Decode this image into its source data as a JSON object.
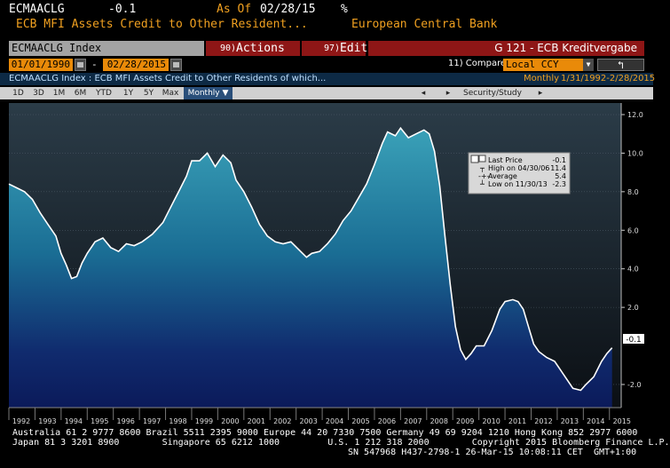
{
  "header": {
    "ticker": "ECMAACLG",
    "last_value": "-0.1",
    "as_of_label": "As Of",
    "as_of_date": "02/28/15",
    "pct_icon": "%",
    "description": "ECB MFI Assets Credit to Other Resident...",
    "source": "European Central Bank"
  },
  "toolbar": {
    "index_field": "ECMAACLG Index",
    "actions_num": "90)",
    "actions_label": "Actions",
    "edit_num": "97)",
    "edit_label": "Edit",
    "graph_title": "G 121 - ECB Kreditvergabe"
  },
  "dates": {
    "start": "01/01/1990",
    "dash": "-",
    "end": "02/28/2015",
    "compare_label": "11) Compare",
    "compare_value": "Local CCY",
    "period": "Monthly",
    "range": "1/31/1992-2/28/2015"
  },
  "series_title": "ECMAACLG Index : ECB MFI Assets Credit to Other Residents of which...",
  "security_study": "Security/Study",
  "zoom_buttons": [
    "1D",
    "3D",
    "1M",
    "6M",
    "YTD",
    "1Y",
    "5Y",
    "Max"
  ],
  "frequency": "Monthly",
  "legend": {
    "last_price_label": "Last Price",
    "last_price_value": "-0.1",
    "high_label": "High on 04/30/06",
    "high_value": "11.4",
    "average_label": "Average",
    "average_value": "5.4",
    "low_label": "Low on 11/30/13",
    "low_value": "-2.3"
  },
  "chart_data": {
    "type": "area",
    "y_ticks": [
      "12.0",
      "10.0",
      "8.0",
      "6.0",
      "4.0",
      "2.0",
      "-2.0"
    ],
    "x_ticks": [
      "1992",
      "1993",
      "1994",
      "1995",
      "1996",
      "1997",
      "1998",
      "1999",
      "2000",
      "2001",
      "2002",
      "2003",
      "2004",
      "2005",
      "2006",
      "2007",
      "2008",
      "2009",
      "2010",
      "2011",
      "2012",
      "2013",
      "2014",
      "2015"
    ],
    "ylim": [
      -3.2,
      12.6
    ],
    "last_value_label": "-0.1",
    "points": [
      [
        1992.0,
        8.4
      ],
      [
        1992.3,
        8.2
      ],
      [
        1992.6,
        8.0
      ],
      [
        1992.9,
        7.6
      ],
      [
        1993.2,
        6.9
      ],
      [
        1993.5,
        6.3
      ],
      [
        1993.8,
        5.7
      ],
      [
        1994.0,
        4.8
      ],
      [
        1994.2,
        4.2
      ],
      [
        1994.4,
        3.5
      ],
      [
        1994.6,
        3.6
      ],
      [
        1994.8,
        4.3
      ],
      [
        1995.0,
        4.8
      ],
      [
        1995.3,
        5.4
      ],
      [
        1995.6,
        5.6
      ],
      [
        1995.9,
        5.1
      ],
      [
        1996.2,
        4.9
      ],
      [
        1996.5,
        5.3
      ],
      [
        1996.8,
        5.2
      ],
      [
        1997.1,
        5.4
      ],
      [
        1997.5,
        5.8
      ],
      [
        1997.9,
        6.4
      ],
      [
        1998.2,
        7.2
      ],
      [
        1998.5,
        8.0
      ],
      [
        1998.8,
        8.8
      ],
      [
        1999.0,
        9.6
      ],
      [
        1999.3,
        9.6
      ],
      [
        1999.6,
        10.0
      ],
      [
        1999.9,
        9.3
      ],
      [
        2000.2,
        9.9
      ],
      [
        2000.5,
        9.5
      ],
      [
        2000.7,
        8.6
      ],
      [
        2001.0,
        8.0
      ],
      [
        2001.3,
        7.2
      ],
      [
        2001.6,
        6.3
      ],
      [
        2001.9,
        5.7
      ],
      [
        2002.2,
        5.4
      ],
      [
        2002.5,
        5.3
      ],
      [
        2002.8,
        5.4
      ],
      [
        2003.1,
        5.0
      ],
      [
        2003.4,
        4.6
      ],
      [
        2003.6,
        4.8
      ],
      [
        2003.9,
        4.9
      ],
      [
        2004.2,
        5.3
      ],
      [
        2004.5,
        5.8
      ],
      [
        2004.8,
        6.5
      ],
      [
        2005.1,
        7.0
      ],
      [
        2005.4,
        7.7
      ],
      [
        2005.7,
        8.4
      ],
      [
        2006.0,
        9.4
      ],
      [
        2006.3,
        10.5
      ],
      [
        2006.5,
        11.1
      ],
      [
        2006.8,
        10.9
      ],
      [
        2007.0,
        11.3
      ],
      [
        2007.3,
        10.8
      ],
      [
        2007.6,
        11.0
      ],
      [
        2007.9,
        11.2
      ],
      [
        2008.1,
        11.0
      ],
      [
        2008.3,
        10.1
      ],
      [
        2008.5,
        8.3
      ],
      [
        2008.7,
        5.7
      ],
      [
        2008.9,
        3.2
      ],
      [
        2009.1,
        1.0
      ],
      [
        2009.3,
        -0.2
      ],
      [
        2009.5,
        -0.7
      ],
      [
        2009.7,
        -0.4
      ],
      [
        2009.9,
        0.0
      ],
      [
        2010.2,
        0.0
      ],
      [
        2010.5,
        0.8
      ],
      [
        2010.8,
        1.9
      ],
      [
        2011.0,
        2.3
      ],
      [
        2011.3,
        2.4
      ],
      [
        2011.5,
        2.3
      ],
      [
        2011.7,
        1.9
      ],
      [
        2011.9,
        1.0
      ],
      [
        2012.1,
        0.1
      ],
      [
        2012.3,
        -0.3
      ],
      [
        2012.6,
        -0.6
      ],
      [
        2012.9,
        -0.8
      ],
      [
        2013.1,
        -1.2
      ],
      [
        2013.4,
        -1.8
      ],
      [
        2013.6,
        -2.2
      ],
      [
        2013.9,
        -2.3
      ],
      [
        2014.1,
        -2.0
      ],
      [
        2014.4,
        -1.6
      ],
      [
        2014.7,
        -0.8
      ],
      [
        2014.9,
        -0.4
      ],
      [
        2015.1,
        -0.1
      ]
    ]
  },
  "footer": {
    "line1": "Australia 61 2 9777 8600 Brazil 5511 2395 9000 Europe 44 20 7330 7500 Germany 49 69 9204 1210 Hong Kong 852 2977 6000",
    "line2": "Japan 81 3 3201 8900        Singapore 65 6212 1000         U.S. 1 212 318 2000        Copyright 2015 Bloomberg Finance L.P.",
    "line3": "SN 547968 H437-2798-1 26-Mar-15 10:08:11 CET  GMT+1:00"
  },
  "colors": {
    "orange": "#f0a020",
    "red_bar": "#8e1616",
    "orange_field": "#e98a09",
    "line": "#ffffff"
  }
}
